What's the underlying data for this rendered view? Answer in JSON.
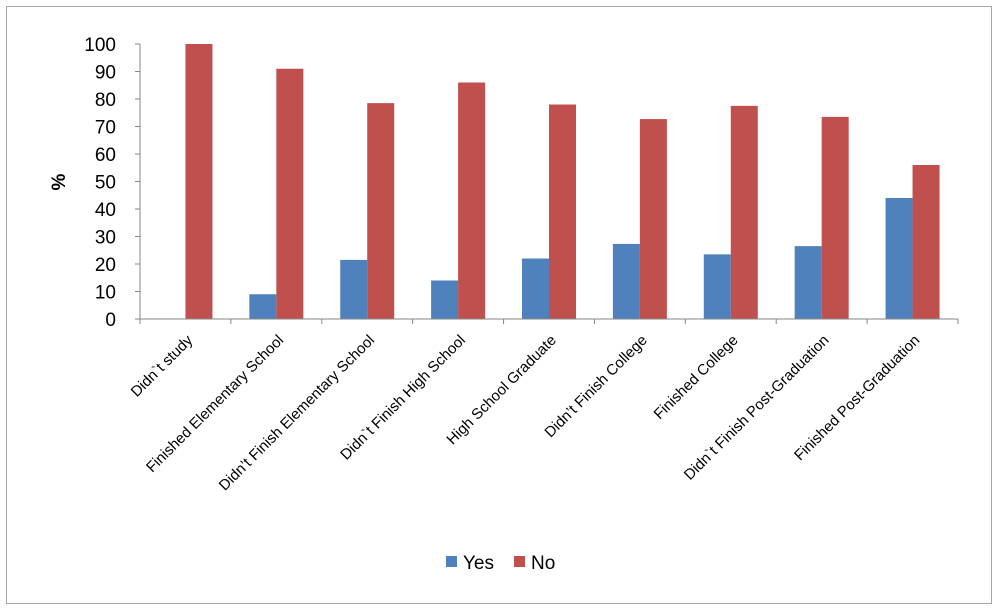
{
  "chart_data": {
    "type": "bar",
    "title": "",
    "xlabel": "",
    "ylabel": "%",
    "ylim": [
      0,
      100
    ],
    "yticks": [
      0,
      10,
      20,
      30,
      40,
      50,
      60,
      70,
      80,
      90,
      100
    ],
    "grid": false,
    "legend_position": "bottom",
    "categories": [
      "Didn`t study",
      "Finished Elementary School",
      "Didn’t Finish Elementary School",
      "Didn`t Finish High School",
      "High School Graduate",
      "Didn’t Finish College",
      "Finished College",
      "Didn`t Finish Post-Graduation",
      "Finished Post-Graduation"
    ],
    "series": [
      {
        "name": "Yes",
        "color": "#4f81bd",
        "values": [
          0,
          9,
          21.5,
          14,
          22,
          27.3,
          23.5,
          26.5,
          44
        ]
      },
      {
        "name": "No",
        "color": "#c0504d",
        "values": [
          100,
          91,
          78.5,
          86,
          78,
          72.7,
          77.5,
          73.5,
          56
        ]
      }
    ]
  }
}
